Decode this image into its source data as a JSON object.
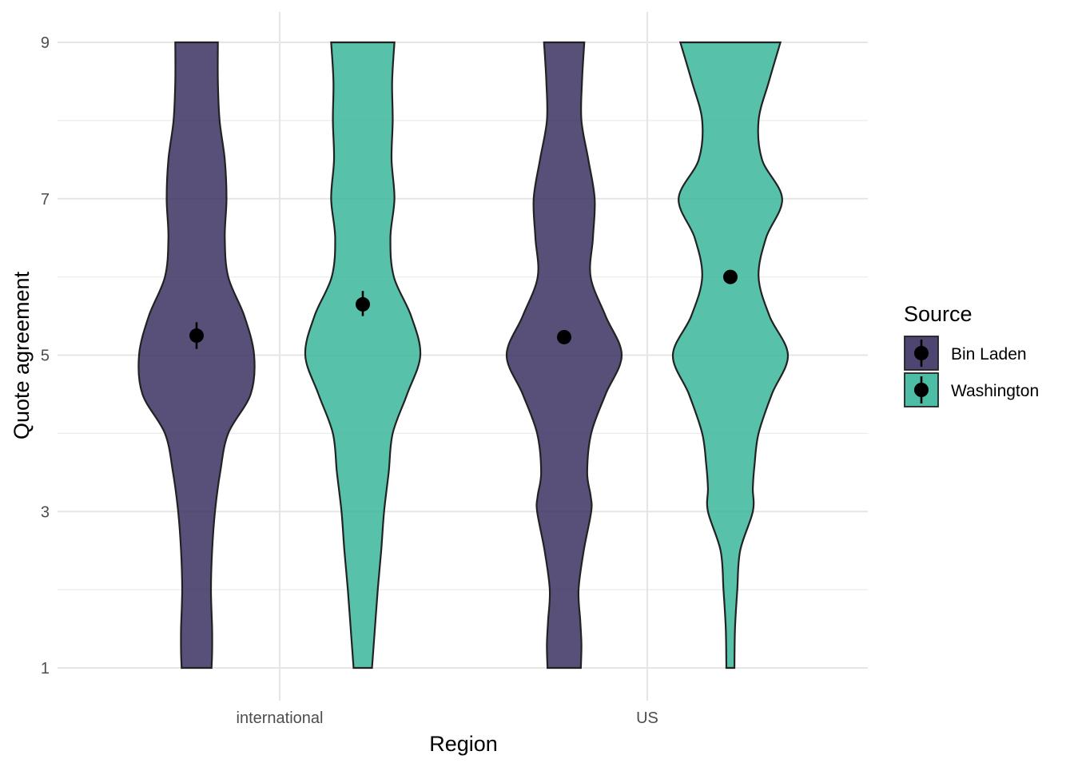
{
  "chart_data": {
    "type": "violin",
    "xlabel": "Region",
    "ylabel": "Quote agreement",
    "categories": [
      "international",
      "US"
    ],
    "y_ticks": [
      1,
      3,
      5,
      7,
      9
    ],
    "ylim": [
      1,
      9
    ],
    "grid": true,
    "legend": {
      "title": "Source",
      "placement": "right"
    },
    "series": [
      {
        "name": "Bin Laden",
        "color": "#3b3161",
        "groups": [
          {
            "category": "international",
            "mean": 5.25,
            "ci": [
              5.08,
              5.42
            ],
            "density": [
              [
                1,
                0.26
              ],
              [
                1.2,
                0.27
              ],
              [
                1.5,
                0.27
              ],
              [
                2,
                0.25
              ],
              [
                2.5,
                0.27
              ],
              [
                3,
                0.32
              ],
              [
                3.5,
                0.41
              ],
              [
                4,
                0.55
              ],
              [
                4.5,
                0.94
              ],
              [
                5,
                1.0
              ],
              [
                5.5,
                0.83
              ],
              [
                6,
                0.55
              ],
              [
                6.5,
                0.49
              ],
              [
                7,
                0.52
              ],
              [
                7.5,
                0.49
              ],
              [
                8,
                0.4
              ],
              [
                8.5,
                0.37
              ],
              [
                9,
                0.37
              ]
            ]
          },
          {
            "category": "US",
            "mean": 5.23,
            "ci": [
              5.23,
              5.23
            ],
            "density": [
              [
                1,
                0.29
              ],
              [
                1.3,
                0.3
              ],
              [
                1.6,
                0.28
              ],
              [
                2,
                0.25
              ],
              [
                2.5,
                0.34
              ],
              [
                3,
                0.47
              ],
              [
                3.2,
                0.46
              ],
              [
                3.5,
                0.4
              ],
              [
                4,
                0.47
              ],
              [
                4.5,
                0.72
              ],
              [
                5,
                1.0
              ],
              [
                5.5,
                0.72
              ],
              [
                6,
                0.46
              ],
              [
                6.5,
                0.5
              ],
              [
                7,
                0.53
              ],
              [
                7.5,
                0.42
              ],
              [
                8,
                0.3
              ],
              [
                8.5,
                0.31
              ],
              [
                9,
                0.35
              ]
            ]
          }
        ]
      },
      {
        "name": "Washington",
        "color": "#3bb69b",
        "groups": [
          {
            "category": "international",
            "mean": 5.65,
            "ci": [
              5.5,
              5.82
            ],
            "density": [
              [
                1,
                0.16
              ],
              [
                1.5,
                0.21
              ],
              [
                2,
                0.26
              ],
              [
                2.5,
                0.32
              ],
              [
                3,
                0.37
              ],
              [
                3.5,
                0.45
              ],
              [
                4,
                0.52
              ],
              [
                4.5,
                0.77
              ],
              [
                5,
                1.0
              ],
              [
                5.5,
                0.84
              ],
              [
                6,
                0.54
              ],
              [
                6.5,
                0.48
              ],
              [
                7,
                0.55
              ],
              [
                7.5,
                0.5
              ],
              [
                8,
                0.52
              ],
              [
                8.5,
                0.51
              ],
              [
                9,
                0.55
              ]
            ]
          },
          {
            "category": "US",
            "mean": 6.0,
            "ci": [
              6.0,
              6.0
            ],
            "density": [
              [
                1,
                0.07
              ],
              [
                1.5,
                0.08
              ],
              [
                2,
                0.12
              ],
              [
                2.5,
                0.17
              ],
              [
                3,
                0.39
              ],
              [
                3.3,
                0.39
              ],
              [
                3.6,
                0.42
              ],
              [
                4,
                0.49
              ],
              [
                4.5,
                0.72
              ],
              [
                5,
                1.0
              ],
              [
                5.5,
                0.68
              ],
              [
                6,
                0.49
              ],
              [
                6.5,
                0.62
              ],
              [
                7,
                0.9
              ],
              [
                7.5,
                0.55
              ],
              [
                8,
                0.49
              ],
              [
                8.5,
                0.67
              ],
              [
                9,
                0.87
              ]
            ]
          }
        ]
      }
    ]
  }
}
